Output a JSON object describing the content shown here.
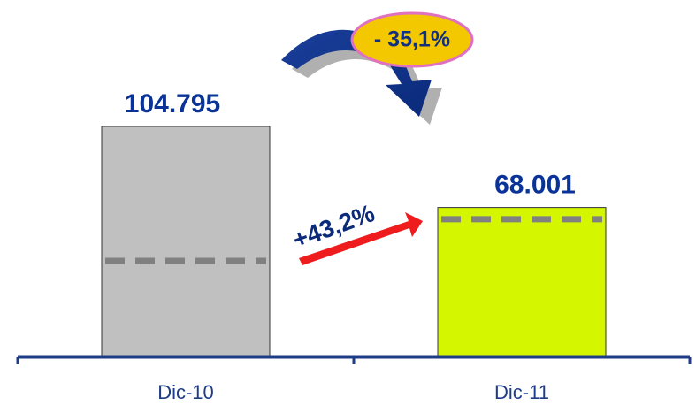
{
  "chart_data": {
    "type": "bar",
    "categories": [
      "Dic-10",
      "Dic-11"
    ],
    "values": [
      104795,
      68001
    ],
    "value_labels": [
      "104.795",
      "68.001"
    ],
    "colors": [
      "#c0c0c0",
      "#d4f700"
    ],
    "dashed_values": [
      43760,
      62660
    ],
    "ylim": [
      0,
      110000
    ],
    "annotations": [
      "- 35,1%",
      "+43,2%"
    ]
  }
}
